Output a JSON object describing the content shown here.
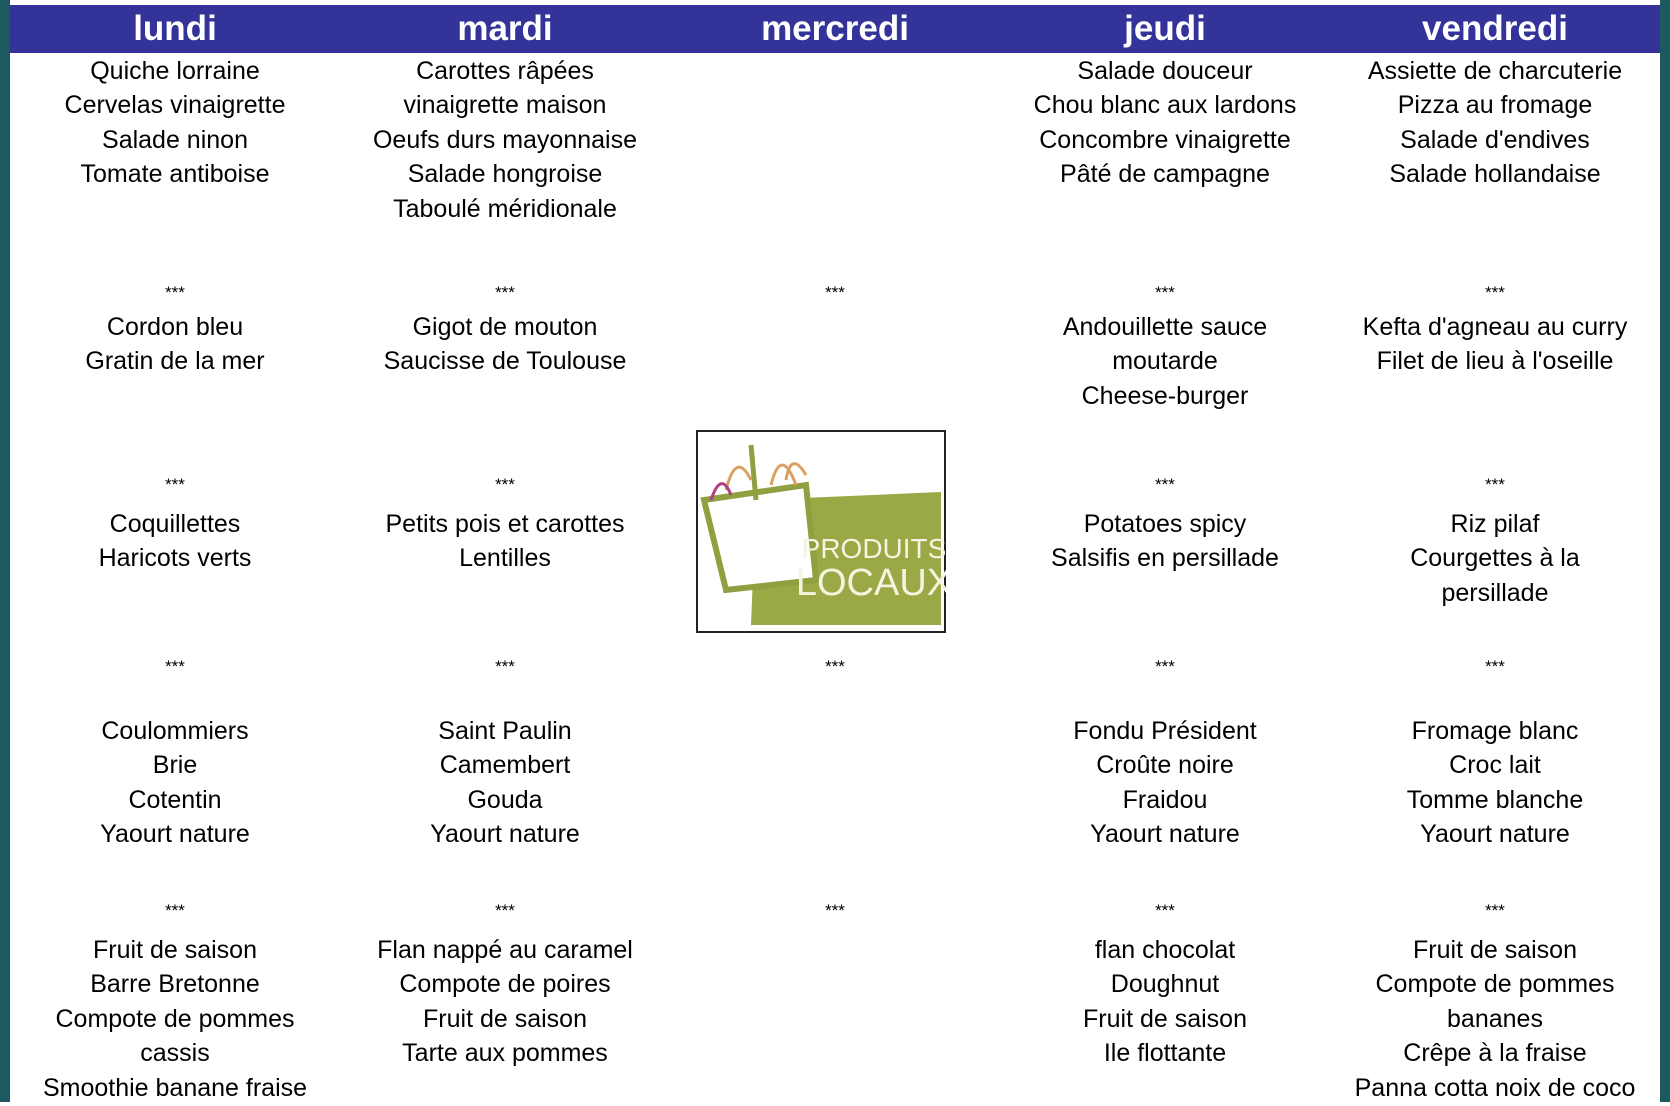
{
  "header": {
    "days": [
      "lundi",
      "mardi",
      "mercredi",
      "jeudi",
      "vendredi"
    ]
  },
  "logo": {
    "line1": "PRODUITS",
    "line2": "LOCAUX"
  },
  "table": {
    "rows": [
      [
        [
          "Quiche lorraine",
          "Cervelas vinaigrette",
          "Salade ninon",
          "Tomate antiboise"
        ],
        [
          "Carottes râpées",
          "vinaigrette maison",
          "Oeufs durs mayonnaise",
          "Salade hongroise",
          "Taboulé méridionale"
        ],
        [],
        [
          "Salade douceur",
          "Chou blanc aux lardons",
          "Concombre vinaigrette",
          "Pâté de campagne"
        ],
        [
          "Assiette de charcuterie",
          "Pizza au fromage",
          "Salade d'endives",
          "Salade hollandaise"
        ]
      ],
      [
        [
          "***"
        ],
        [
          "***"
        ],
        [
          "***"
        ],
        [
          "***"
        ],
        [
          "***"
        ]
      ],
      [
        [
          "Cordon bleu",
          "Gratin de la mer"
        ],
        [
          "Gigot de mouton",
          "Saucisse de Toulouse"
        ],
        [],
        [
          "Andouillette sauce",
          "moutarde",
          "Cheese-burger"
        ],
        [
          "Kefta d'agneau au curry",
          "Filet de lieu à l'oseille"
        ]
      ],
      [
        [
          "***"
        ],
        [
          "***"
        ],
        [],
        [
          "***"
        ],
        [
          "***"
        ]
      ],
      [
        [
          "Coquillettes",
          "Haricots verts"
        ],
        [
          "Petits pois et carottes",
          "Lentilles"
        ],
        [],
        [
          "Potatoes spicy",
          "Salsifis en persillade"
        ],
        [
          "Riz pilaf",
          "Courgettes à la",
          "persillade"
        ]
      ],
      [
        [
          "***"
        ],
        [
          "***"
        ],
        [
          "***"
        ],
        [
          "***"
        ],
        [
          "***"
        ]
      ],
      [
        [
          "Coulommiers",
          "Brie",
          "Cotentin",
          "Yaourt nature"
        ],
        [
          "Saint Paulin",
          "Camembert",
          "Gouda",
          "Yaourt nature"
        ],
        [],
        [
          "Fondu Président",
          "Croûte noire",
          "Fraidou",
          "Yaourt nature"
        ],
        [
          "Fromage blanc",
          "Croc lait",
          "Tomme blanche",
          "Yaourt nature"
        ]
      ],
      [
        [
          "***"
        ],
        [
          "***"
        ],
        [
          "***"
        ],
        [
          "***"
        ],
        [
          "***"
        ]
      ],
      [
        [
          "Fruit de saison",
          "Barre Bretonne",
          "Compote de pommes",
          "cassis",
          "Smoothie  banane fraise"
        ],
        [
          "Flan nappé au caramel",
          "Compote de poires",
          "Fruit de saison",
          "Tarte aux pommes"
        ],
        [],
        [
          "flan chocolat",
          "Doughnut",
          "Fruit de saison",
          "Ile flottante"
        ],
        [
          "Fruit de saison",
          "Compote de pommes",
          "bananes",
          "Crêpe à la fraise",
          "Panna cotta noix de coco"
        ]
      ]
    ]
  }
}
